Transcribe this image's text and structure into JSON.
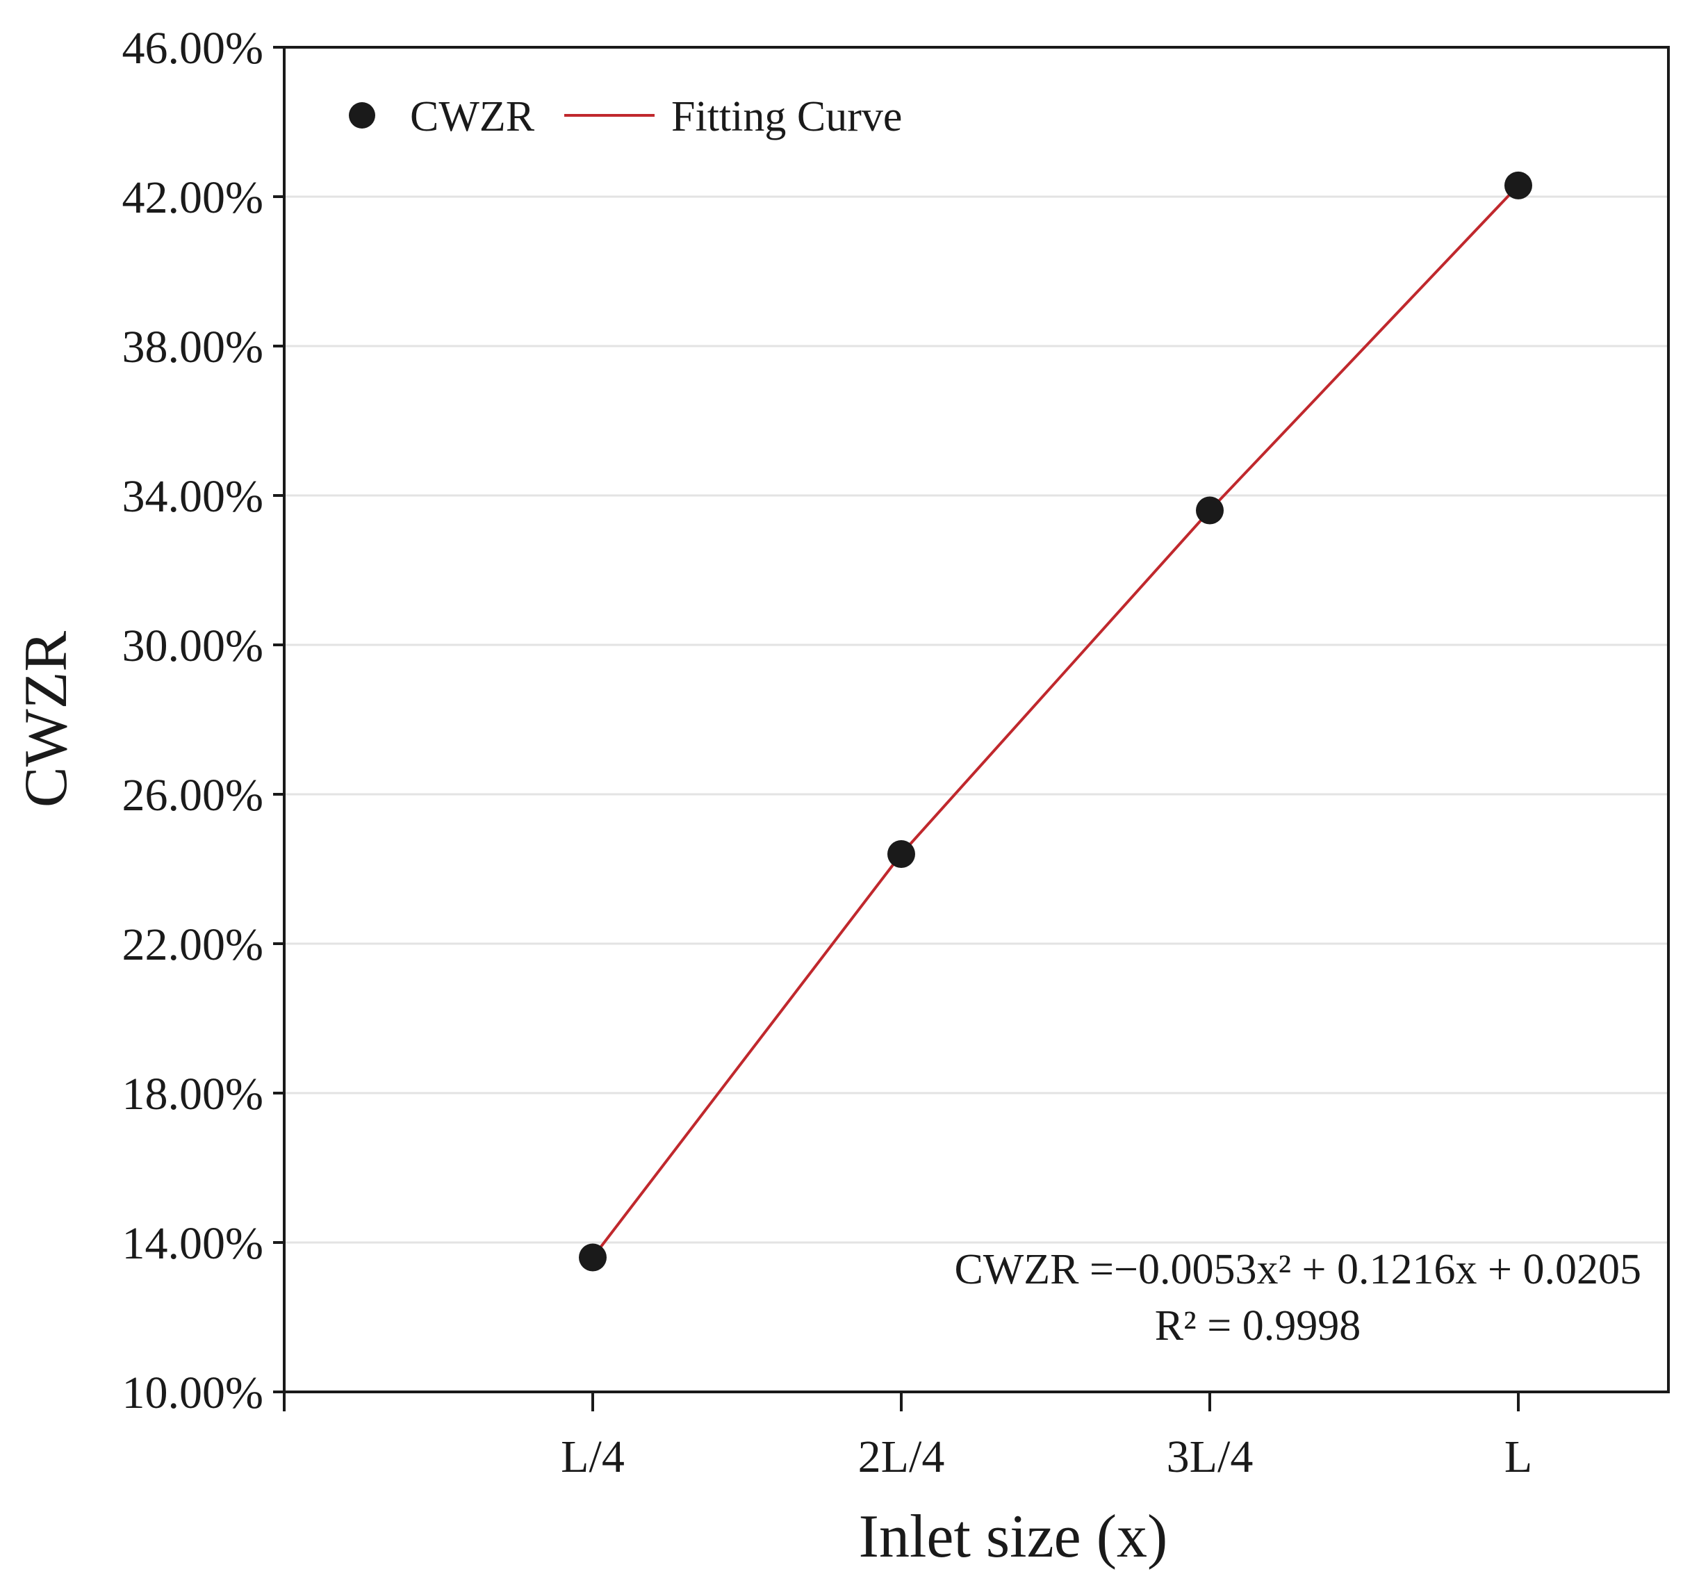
{
  "chart_data": {
    "type": "scatter",
    "title": "",
    "xlabel": "Inlet size (x)",
    "ylabel": "CWZR",
    "categories": [
      "L/4",
      "2L/4",
      "3L/4",
      "L"
    ],
    "series": [
      {
        "name": "CWZR",
        "kind": "scatter",
        "values": [
          13.6,
          24.4,
          33.6,
          42.3
        ]
      },
      {
        "name": "Fitting Curve",
        "kind": "line",
        "values": [
          13.6,
          24.4,
          33.6,
          42.3
        ]
      }
    ],
    "yticks": [
      "46.00%",
      "42.00%",
      "38.00%",
      "34.00%",
      "30.00%",
      "26.00%",
      "22.00%",
      "18.00%",
      "14.00%",
      "10.00%"
    ],
    "ytick_values": [
      46,
      42,
      38,
      34,
      30,
      26,
      22,
      18,
      14,
      10
    ],
    "ylim": [
      10,
      46
    ],
    "grid": true,
    "legend_position": "top-left",
    "equation": "CWZR =−0.0053x² + 0.1216x + 0.0205",
    "r_squared": "R² = 0.9998",
    "colors": {
      "marker": "#1a1a1a",
      "fit": "#c0282d",
      "grid": "#e3e3e3",
      "axis": "#1a1a1a"
    }
  }
}
